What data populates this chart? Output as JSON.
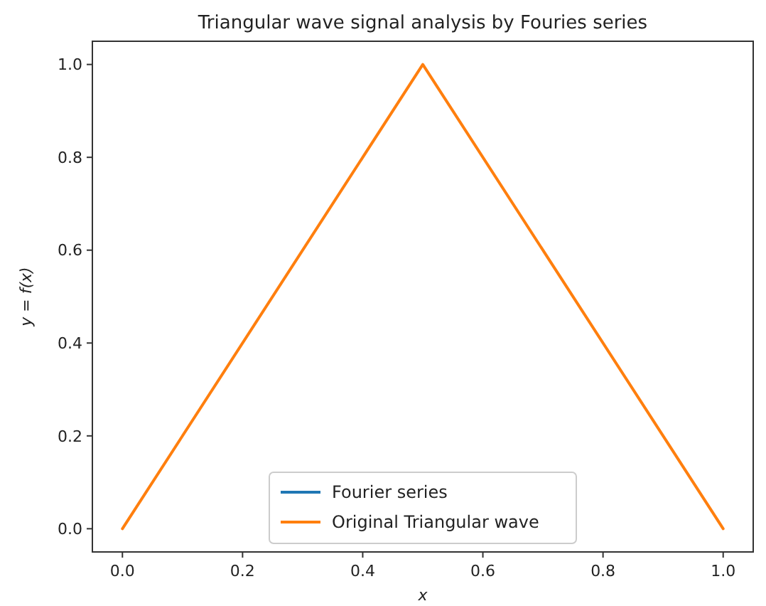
{
  "chart_data": {
    "type": "line",
    "title": "Triangular wave signal analysis by Fouries series",
    "xlabel": "x",
    "ylabel": "y = f(x)",
    "series": [
      {
        "name": "Fourier series",
        "color": "#1f77b4",
        "values": [
          null,
          null,
          null
        ]
      },
      {
        "name": "Original Triangular wave",
        "color": "#ff7f0e",
        "x": [
          0,
          0.5,
          1
        ],
        "values": [
          0,
          1,
          0
        ]
      }
    ],
    "xlim": [
      -0.05,
      1.05
    ],
    "ylim": [
      -0.05,
      1.05
    ],
    "xticks": [
      {
        "value": 0,
        "label": "0.0"
      },
      0.2,
      0.4,
      0.6,
      0.8,
      {
        "value": 1,
        "label": "1.0"
      }
    ],
    "yticks": [
      {
        "value": 0,
        "label": "0.0"
      },
      0.2,
      0.4,
      0.6,
      0.8,
      {
        "value": 1,
        "label": "1.0"
      }
    ],
    "grid": false,
    "legend": "bottom",
    "marker": "none",
    "line_style": "solid"
  }
}
